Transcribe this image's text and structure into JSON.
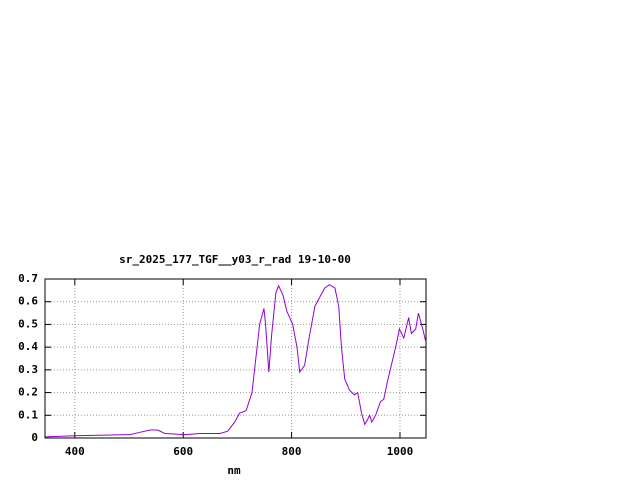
{
  "chart_data": {
    "type": "line",
    "title": "sr_2025_177_TGF__y03_r_rad 19-10-00",
    "x_label": "nm",
    "x": [
      345,
      400,
      446,
      502,
      520,
      539,
      553,
      566,
      603,
      631,
      668,
      682,
      695,
      704,
      716,
      727,
      734,
      741,
      749,
      752,
      758,
      763,
      771,
      776,
      784,
      791,
      802,
      810,
      815,
      824,
      833,
      843,
      852,
      861,
      870,
      880,
      887,
      892,
      898,
      907,
      916,
      922,
      929,
      935,
      940,
      944,
      948,
      955,
      964,
      970,
      977,
      985,
      992,
      999,
      1007,
      1016,
      1021,
      1029,
      1034,
      1042,
      1047
    ],
    "series": [
      {
        "color": "#9400d3",
        "values": [
          0.005,
          0.01,
          0.012,
          0.015,
          0.025,
          0.035,
          0.035,
          0.02,
          0.015,
          0.02,
          0.02,
          0.03,
          0.07,
          0.11,
          0.12,
          0.2,
          0.35,
          0.5,
          0.57,
          0.5,
          0.29,
          0.45,
          0.64,
          0.67,
          0.63,
          0.56,
          0.5,
          0.4,
          0.29,
          0.32,
          0.45,
          0.58,
          0.62,
          0.66,
          0.675,
          0.66,
          0.58,
          0.4,
          0.26,
          0.21,
          0.19,
          0.2,
          0.11,
          0.06,
          0.08,
          0.1,
          0.07,
          0.1,
          0.16,
          0.17,
          0.25,
          0.33,
          0.4,
          0.48,
          0.44,
          0.53,
          0.46,
          0.48,
          0.55,
          0.48,
          0.43
        ]
      }
    ],
    "xlim": [
      345,
      1048
    ],
    "xticks": [
      400,
      600,
      800,
      1000
    ],
    "ylim": [
      0,
      0.7
    ],
    "yticks": [
      0,
      0.1,
      0.2,
      0.3,
      0.4,
      0.5,
      0.6,
      0.7
    ],
    "grid": true
  }
}
